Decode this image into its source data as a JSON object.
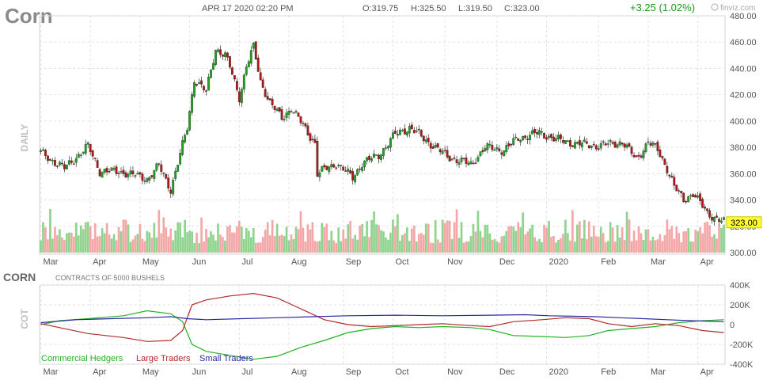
{
  "header": {
    "symbol": "Corn",
    "datetime": "APR 17 2020 02:20 PM",
    "open": "O:319.75",
    "high": "H:325.50",
    "low": "L:319.50",
    "close": "C:323.00",
    "change": "+3.25 (1.02%)",
    "brand": "finviz.com",
    "change_color": "#1a9a1a"
  },
  "price_panel": {
    "side_label": "DAILY",
    "last_price_label": "323.00"
  },
  "cot_panel": {
    "symbol": "CORN",
    "subtitle": "CONTRACTS OF 5000 BUSHELS",
    "side_label": "COT",
    "legend": [
      {
        "name": "Commercial Hedgers",
        "color": "#22b322"
      },
      {
        "name": "Large Traders",
        "color": "#b52a2a"
      },
      {
        "name": "Small Traders",
        "color": "#2a2aa0"
      }
    ]
  },
  "chart_data": [
    {
      "type": "candlestick",
      "ylim": [
        300,
        480
      ],
      "y_ticks": [
        "300.00",
        "320.00",
        "340.00",
        "360.00",
        "380.00",
        "400.00",
        "420.00",
        "440.00",
        "460.00",
        "480.00"
      ],
      "x_ticks": [
        "Mar",
        "Apr",
        "May",
        "Jun",
        "Jul",
        "Aug",
        "Sep",
        "Oct",
        "Nov",
        "Dec",
        "2020",
        "Feb",
        "Mar",
        "Apr"
      ],
      "x_tick_positions": [
        0,
        21,
        42,
        63,
        84,
        105,
        128,
        149,
        171,
        193,
        214,
        236,
        257,
        278
      ],
      "n_bars": 290,
      "close_anchors": [
        [
          0,
          376
        ],
        [
          10,
          364
        ],
        [
          20,
          381
        ],
        [
          25,
          362
        ],
        [
          35,
          361
        ],
        [
          45,
          356
        ],
        [
          50,
          366
        ],
        [
          55,
          348
        ],
        [
          58,
          368
        ],
        [
          62,
          395
        ],
        [
          65,
          432
        ],
        [
          70,
          422
        ],
        [
          74,
          455
        ],
        [
          78,
          450
        ],
        [
          80,
          441
        ],
        [
          84,
          418
        ],
        [
          87,
          442
        ],
        [
          90,
          456
        ],
        [
          93,
          430
        ],
        [
          97,
          414
        ],
        [
          102,
          402
        ],
        [
          106,
          410
        ],
        [
          116,
          383
        ],
        [
          117,
          360
        ],
        [
          125,
          368
        ],
        [
          132,
          357
        ],
        [
          136,
          368
        ],
        [
          143,
          374
        ],
        [
          150,
          390
        ],
        [
          156,
          395
        ],
        [
          164,
          384
        ],
        [
          172,
          373
        ],
        [
          182,
          367
        ],
        [
          188,
          380
        ],
        [
          196,
          378
        ],
        [
          202,
          387
        ],
        [
          211,
          391
        ],
        [
          218,
          386
        ],
        [
          226,
          383
        ],
        [
          236,
          381
        ],
        [
          246,
          384
        ],
        [
          252,
          371
        ],
        [
          257,
          384
        ],
        [
          261,
          378
        ],
        [
          265,
          364
        ],
        [
          268,
          350
        ],
        [
          272,
          340
        ],
        [
          276,
          345
        ],
        [
          282,
          330
        ],
        [
          287,
          325
        ],
        [
          289,
          323
        ]
      ],
      "volume": {
        "ylim": [
          0,
          100
        ],
        "bull_color": "#8fd38f",
        "bear_color": "#f4a7a7"
      }
    },
    {
      "type": "line",
      "ylim": [
        -400000,
        400000
      ],
      "y_ticks": [
        "400K",
        "200K",
        "0",
        "-200K",
        "-400K"
      ],
      "x_ticks": [
        "Mar",
        "Apr",
        "May",
        "Jun",
        "Jul",
        "Aug",
        "Sep",
        "Oct",
        "Nov",
        "Dec",
        "2020",
        "Feb",
        "Mar",
        "Apr"
      ],
      "series": [
        {
          "name": "Commercial Hedgers",
          "color": "#22b322",
          "points": [
            [
              0,
              0
            ],
            [
              8,
              40000
            ],
            [
              20,
              60000
            ],
            [
              35,
              90000
            ],
            [
              45,
              140000
            ],
            [
              55,
              110000
            ],
            [
              60,
              30000
            ],
            [
              64,
              -200000
            ],
            [
              70,
              -270000
            ],
            [
              80,
              -310000
            ],
            [
              90,
              -350000
            ],
            [
              100,
              -320000
            ],
            [
              110,
              -230000
            ],
            [
              120,
              -160000
            ],
            [
              130,
              -80000
            ],
            [
              140,
              -40000
            ],
            [
              150,
              -20000
            ],
            [
              160,
              -30000
            ],
            [
              170,
              -20000
            ],
            [
              182,
              -30000
            ],
            [
              190,
              -50000
            ],
            [
              200,
              -110000
            ],
            [
              212,
              -120000
            ],
            [
              222,
              -130000
            ],
            [
              232,
              -110000
            ],
            [
              240,
              -60000
            ],
            [
              250,
              -40000
            ],
            [
              260,
              -20000
            ],
            [
              270,
              20000
            ],
            [
              280,
              40000
            ],
            [
              289,
              50000
            ]
          ]
        },
        {
          "name": "Large Traders",
          "color": "#b52a2a",
          "points": [
            [
              0,
              10000
            ],
            [
              8,
              -30000
            ],
            [
              20,
              -90000
            ],
            [
              35,
              -130000
            ],
            [
              45,
              -170000
            ],
            [
              55,
              -160000
            ],
            [
              60,
              -60000
            ],
            [
              64,
              200000
            ],
            [
              70,
              250000
            ],
            [
              80,
              290000
            ],
            [
              90,
              315000
            ],
            [
              100,
              270000
            ],
            [
              110,
              160000
            ],
            [
              120,
              50000
            ],
            [
              130,
              0
            ],
            [
              140,
              -20000
            ],
            [
              150,
              -10000
            ],
            [
              160,
              0
            ],
            [
              170,
              10000
            ],
            [
              182,
              -10000
            ],
            [
              190,
              -20000
            ],
            [
              200,
              30000
            ],
            [
              212,
              50000
            ],
            [
              222,
              70000
            ],
            [
              232,
              60000
            ],
            [
              240,
              10000
            ],
            [
              250,
              -20000
            ],
            [
              260,
              10000
            ],
            [
              270,
              -10000
            ],
            [
              280,
              -60000
            ],
            [
              289,
              -80000
            ]
          ]
        },
        {
          "name": "Small Traders",
          "color": "#2a2aa0",
          "points": [
            [
              0,
              20000
            ],
            [
              15,
              50000
            ],
            [
              30,
              60000
            ],
            [
              45,
              70000
            ],
            [
              55,
              80000
            ],
            [
              62,
              60000
            ],
            [
              70,
              50000
            ],
            [
              85,
              60000
            ],
            [
              100,
              70000
            ],
            [
              115,
              80000
            ],
            [
              130,
              90000
            ],
            [
              150,
              95000
            ],
            [
              170,
              90000
            ],
            [
              190,
              95000
            ],
            [
              205,
              100000
            ],
            [
              215,
              90000
            ],
            [
              225,
              85000
            ],
            [
              235,
              80000
            ],
            [
              245,
              70000
            ],
            [
              255,
              60000
            ],
            [
              265,
              50000
            ],
            [
              275,
              40000
            ],
            [
              289,
              30000
            ]
          ]
        }
      ]
    }
  ]
}
